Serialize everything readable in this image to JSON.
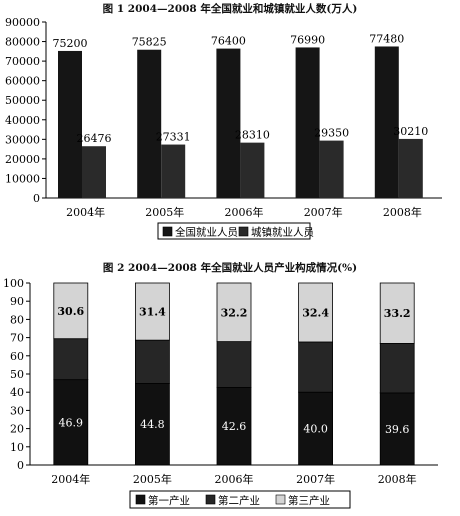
{
  "chart_data": [
    {
      "type": "bar",
      "title": "图 1   2004—2008 年全国就业和城镇就业人数(万人)",
      "categories": [
        "2004年",
        "2005年",
        "2006年",
        "2007年",
        "2008年"
      ],
      "series": [
        {
          "name": "全国就业人员",
          "values": [
            75200,
            75825,
            76400,
            76990,
            77480
          ],
          "color": "#151515"
        },
        {
          "name": "城镇就业人员",
          "values": [
            26476,
            27331,
            28310,
            29350,
            30210
          ],
          "color": "#2a2a2a"
        }
      ],
      "yticks": [
        "0",
        "10000",
        "20000",
        "30000",
        "40000",
        "50000",
        "60000",
        "70000",
        "80000",
        "90000"
      ],
      "ylim": [
        0,
        90000
      ],
      "grid": false,
      "legend": "bottom"
    },
    {
      "type": "bar",
      "stacked": true,
      "title": "图 2   2004—2008 年全国就业人员产业构成情况(%)",
      "categories": [
        "2004年",
        "2005年",
        "2006年",
        "2007年",
        "2008年"
      ],
      "series": [
        {
          "name": "第一产业",
          "values": [
            46.9,
            44.8,
            42.6,
            40.0,
            39.6
          ],
          "labels": [
            "46.9",
            "44.8",
            "42.6",
            "40.0",
            "39.6"
          ],
          "color": "#111111"
        },
        {
          "name": "第二产业",
          "values": [
            22.5,
            23.8,
            25.2,
            27.6,
            27.2
          ],
          "color": "#262626"
        },
        {
          "name": "第三产业",
          "values": [
            30.6,
            31.4,
            32.2,
            32.4,
            33.2
          ],
          "labels": [
            "30.6",
            "31.4",
            "32.2",
            "32.4",
            "33.2"
          ],
          "color": "#d4d4d4"
        }
      ],
      "yticks": [
        "0",
        "10",
        "20",
        "30",
        "40",
        "50",
        "60",
        "70",
        "80",
        "90",
        "100"
      ],
      "ylim": [
        0,
        100
      ],
      "grid": false,
      "legend": "bottom"
    }
  ]
}
